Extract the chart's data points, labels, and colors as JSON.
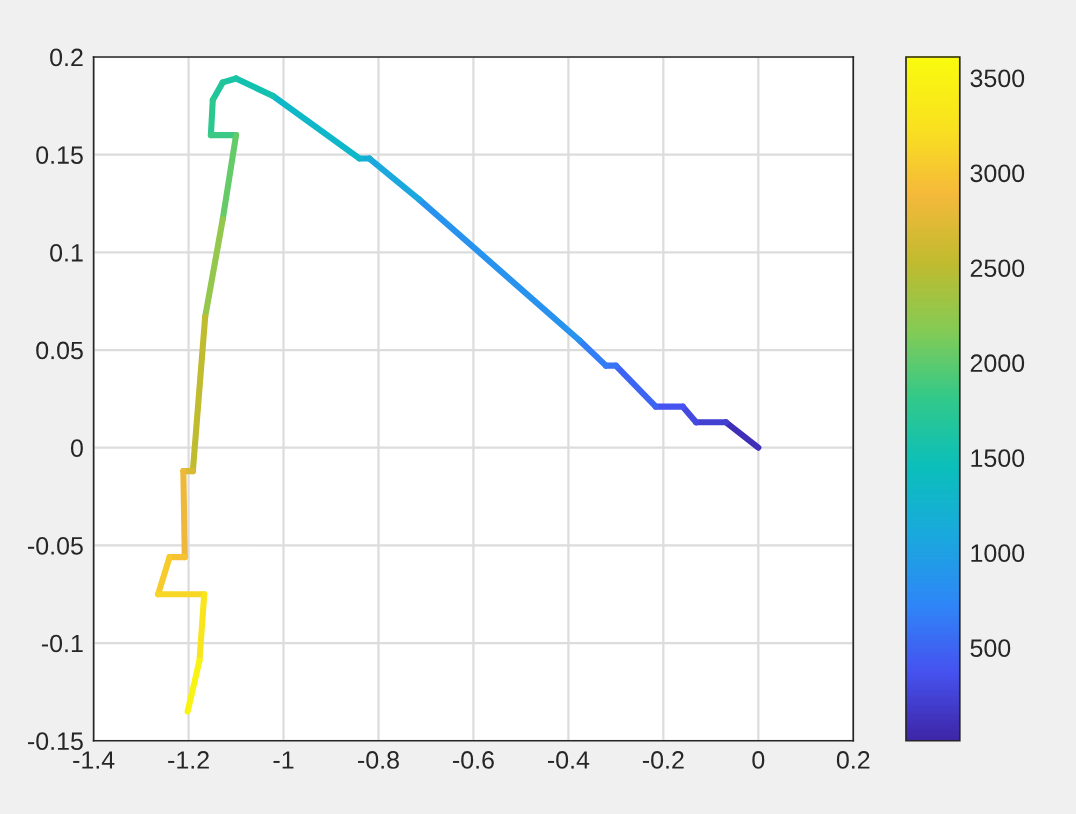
{
  "chart_data": {
    "type": "line",
    "series": [
      {
        "color": "#3f2fb8",
        "x": [
          0,
          -0.068
        ],
        "values": [
          0,
          0.013
        ]
      },
      {
        "color": "#4240d0",
        "x": [
          -0.068,
          -0.131
        ],
        "values": [
          0.013,
          0.013
        ]
      },
      {
        "color": "#4449e0",
        "x": [
          -0.131,
          -0.159
        ],
        "values": [
          0.013,
          0.021
        ]
      },
      {
        "color": "#4653f0",
        "x": [
          -0.159,
          -0.216
        ],
        "values": [
          0.021,
          0.021
        ]
      },
      {
        "color": "#3d65f3",
        "x": [
          -0.216,
          -0.3
        ],
        "values": [
          0.021,
          0.042
        ]
      },
      {
        "color": "#3775f5",
        "x": [
          -0.3,
          -0.321
        ],
        "values": [
          0.042,
          0.042
        ]
      },
      {
        "color": "#337df6",
        "x": [
          -0.321,
          -0.377
        ],
        "values": [
          0.042,
          0.055
        ]
      },
      {
        "color": "#2893ef",
        "x": [
          -0.377,
          -0.714
        ],
        "values": [
          0.055,
          0.127
        ]
      },
      {
        "color": "#1ba8df",
        "x": [
          -0.714,
          -0.819
        ],
        "values": [
          0.127,
          0.148
        ]
      },
      {
        "color": "#17aed6",
        "x": [
          -0.819,
          -0.84
        ],
        "values": [
          0.148,
          0.148
        ]
      },
      {
        "color": "#0fb8c8",
        "x": [
          -0.84,
          -1.022
        ],
        "values": [
          0.148,
          0.18
        ]
      },
      {
        "color": "#13c1b1",
        "x": [
          -1.022,
          -1.1
        ],
        "values": [
          0.18,
          0.189
        ]
      },
      {
        "color": "#1ac4a4",
        "x": [
          -1.1,
          -1.128
        ],
        "values": [
          0.189,
          0.187
        ]
      },
      {
        "color": "#22c59a",
        "x": [
          -1.128,
          -1.149
        ],
        "values": [
          0.187,
          0.178
        ]
      },
      {
        "color": "#2cc88f",
        "x": [
          -1.149,
          -1.153
        ],
        "values": [
          0.178,
          0.16
        ]
      },
      {
        "color": "#3cc985",
        "x": [
          -1.153,
          -1.1
        ],
        "values": [
          0.16,
          0.16
        ]
      },
      {
        "color": "#65ca68",
        "x": [
          -1.1,
          -1.128
        ],
        "values": [
          0.16,
          0.117
        ]
      },
      {
        "color": "#93c84c",
        "x": [
          -1.128,
          -1.165
        ],
        "values": [
          0.117,
          0.067
        ]
      },
      {
        "color": "#bfbc30",
        "x": [
          -1.165,
          -1.191
        ],
        "values": [
          0.067,
          -0.012
        ]
      },
      {
        "color": "#d8ba33",
        "x": [
          -1.191,
          -1.211
        ],
        "values": [
          -0.012,
          -0.012
        ]
      },
      {
        "color": "#eeb93a",
        "x": [
          -1.211,
          -1.208
        ],
        "values": [
          -0.012,
          -0.056
        ]
      },
      {
        "color": "#f6c233",
        "x": [
          -1.208,
          -1.24
        ],
        "values": [
          -0.056,
          -0.056
        ]
      },
      {
        "color": "#f7cb2c",
        "x": [
          -1.24,
          -1.264
        ],
        "values": [
          -0.056,
          -0.075
        ]
      },
      {
        "color": "#f8d625",
        "x": [
          -1.264,
          -1.167
        ],
        "values": [
          -0.075,
          -0.075
        ]
      },
      {
        "color": "#f9e51d",
        "x": [
          -1.167,
          -1.177
        ],
        "values": [
          -0.075,
          -0.109
        ]
      },
      {
        "color": "#f9f313",
        "x": [
          -1.177,
          -1.202
        ],
        "values": [
          -0.109,
          -0.135
        ]
      }
    ],
    "clim": [
      10,
      3610
    ],
    "cticks": [
      500,
      1000,
      1500,
      2000,
      2500,
      3000,
      3500
    ],
    "xlim": [
      -1.4,
      0.2
    ],
    "xticks": [
      -1.4,
      -1.2,
      -1,
      -0.8,
      -0.6,
      -0.4,
      -0.2,
      0,
      0.2
    ],
    "ylim": [
      -0.15,
      0.2
    ],
    "yticks": [
      -0.15,
      -0.1,
      -0.05,
      0,
      0.05,
      0.1,
      0.15,
      0.2
    ],
    "grid": true,
    "line_style": "solid",
    "marker": "none"
  }
}
